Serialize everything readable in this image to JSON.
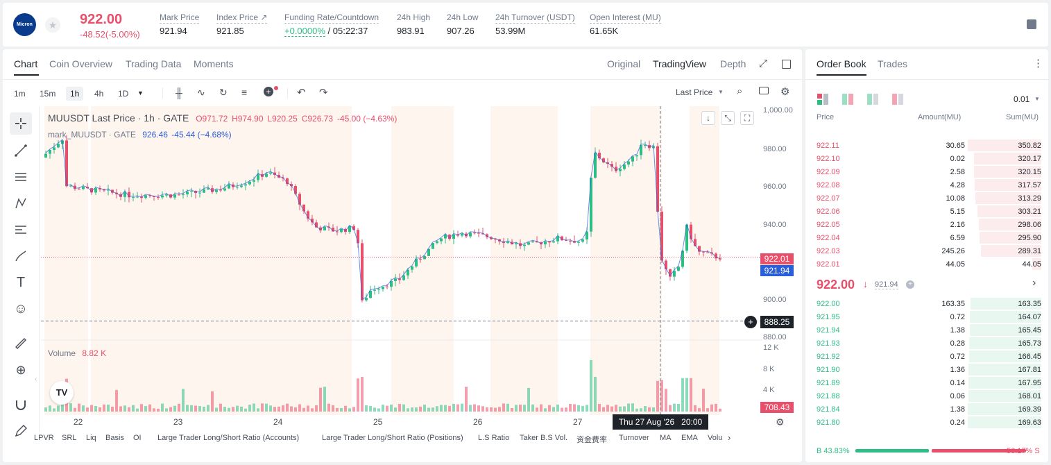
{
  "ticker": {
    "price": "922.00",
    "change": "-48.52(-5.00%)",
    "logo_text": "Micron",
    "stats": [
      {
        "label": "Mark Price",
        "value": "921.94"
      },
      {
        "label": "Index Price ↗",
        "value": "921.85"
      },
      {
        "label": "Funding Rate/Countdown",
        "value_green": "+0.0000%",
        "value": " / 05:22:37"
      },
      {
        "label": "24h High",
        "value": "983.91"
      },
      {
        "label": "24h Low",
        "value": "907.26"
      },
      {
        "label": "24h Turnover (USDT)",
        "value": "53.99M"
      },
      {
        "label": "Open Interest (MU)",
        "value": "61.65K"
      }
    ]
  },
  "chart_tabs": [
    "Chart",
    "Coin Overview",
    "Trading Data",
    "Moments"
  ],
  "view_tabs": [
    "Original",
    "TradingView",
    "Depth"
  ],
  "timeframes": [
    "1m",
    "15m",
    "1h",
    "4h",
    "1D"
  ],
  "price_type": "Last Price",
  "legend": {
    "title": "MUUSDT Last Price · 1h · GATE",
    "o": "O971.72",
    "h": "H974.90",
    "l": "L920.25",
    "c": "C926.73",
    "chg": "-45.00 (−4.63%)",
    "mark_label": "mark_MUUSDT · GATE",
    "mark_val": "926.46",
    "mark_chg": "-45.44 (−4.68%)",
    "volume_label": "Volume",
    "volume_val": "8.82 K"
  },
  "price_axis": {
    "labels": [
      "1,000.00",
      "980.00",
      "960.00",
      "940.00",
      "920.00",
      "900.00",
      "880.00"
    ],
    "last_tag": "922.01",
    "mark_tag": "921.94",
    "cross_tag": "888.25",
    "vol_labels": [
      "12 K",
      "8 K",
      "4 K"
    ],
    "vol_tag": "708.43"
  },
  "time_axis": {
    "labels": [
      "22",
      "23",
      "24",
      "25",
      "26",
      "27"
    ],
    "cursor_label": "Thu 27 Aug '26   20:00"
  },
  "indicators": [
    "LPVR",
    "SRL",
    "Liq",
    "Basis",
    "OI",
    "Large Trader Long/Short Ratio (Accounts)",
    "Large Trader Long/Short Ratio (Positions)",
    "L.S Ratio",
    "Taker B.S Vol.",
    "资金费率",
    "Turnover",
    "MA",
    "EMA",
    "Volu"
  ],
  "order_book": {
    "tabs": [
      "Order Book",
      "Trades"
    ],
    "precision": "0.01",
    "headers": [
      "Price",
      "Amount(MU)",
      "Sum(MU)"
    ],
    "asks": [
      {
        "price": "922.11",
        "amount": "30.65",
        "sum": "350.82"
      },
      {
        "price": "922.10",
        "amount": "0.02",
        "sum": "320.17"
      },
      {
        "price": "922.09",
        "amount": "2.58",
        "sum": "320.15"
      },
      {
        "price": "922.08",
        "amount": "4.28",
        "sum": "317.57"
      },
      {
        "price": "922.07",
        "amount": "10.08",
        "sum": "313.29"
      },
      {
        "price": "922.06",
        "amount": "5.15",
        "sum": "303.21"
      },
      {
        "price": "922.05",
        "amount": "2.16",
        "sum": "298.06"
      },
      {
        "price": "922.04",
        "amount": "6.59",
        "sum": "295.90"
      },
      {
        "price": "922.03",
        "amount": "245.26",
        "sum": "289.31"
      },
      {
        "price": "922.01",
        "amount": "44.05",
        "sum": "44.05"
      }
    ],
    "mid_price": "922.00",
    "mid_mark": "921.94",
    "bids": [
      {
        "price": "922.00",
        "amount": "163.35",
        "sum": "163.35"
      },
      {
        "price": "921.95",
        "amount": "0.72",
        "sum": "164.07"
      },
      {
        "price": "921.94",
        "amount": "1.38",
        "sum": "165.45"
      },
      {
        "price": "921.93",
        "amount": "0.28",
        "sum": "165.73"
      },
      {
        "price": "921.92",
        "amount": "0.72",
        "sum": "166.45"
      },
      {
        "price": "921.90",
        "amount": "1.36",
        "sum": "167.81"
      },
      {
        "price": "921.89",
        "amount": "0.14",
        "sum": "167.95"
      },
      {
        "price": "921.88",
        "amount": "0.06",
        "sum": "168.01"
      },
      {
        "price": "921.84",
        "amount": "1.38",
        "sum": "169.39"
      },
      {
        "price": "921.80",
        "amount": "0.24",
        "sum": "169.63"
      }
    ],
    "buy_label": "B 43.83%",
    "sell_label": "56.17% S",
    "buy_ratio": 0.4383
  },
  "colors": {
    "up": "#2ebd85",
    "down": "#e84f6a",
    "mark": "#2b5fd9"
  }
}
